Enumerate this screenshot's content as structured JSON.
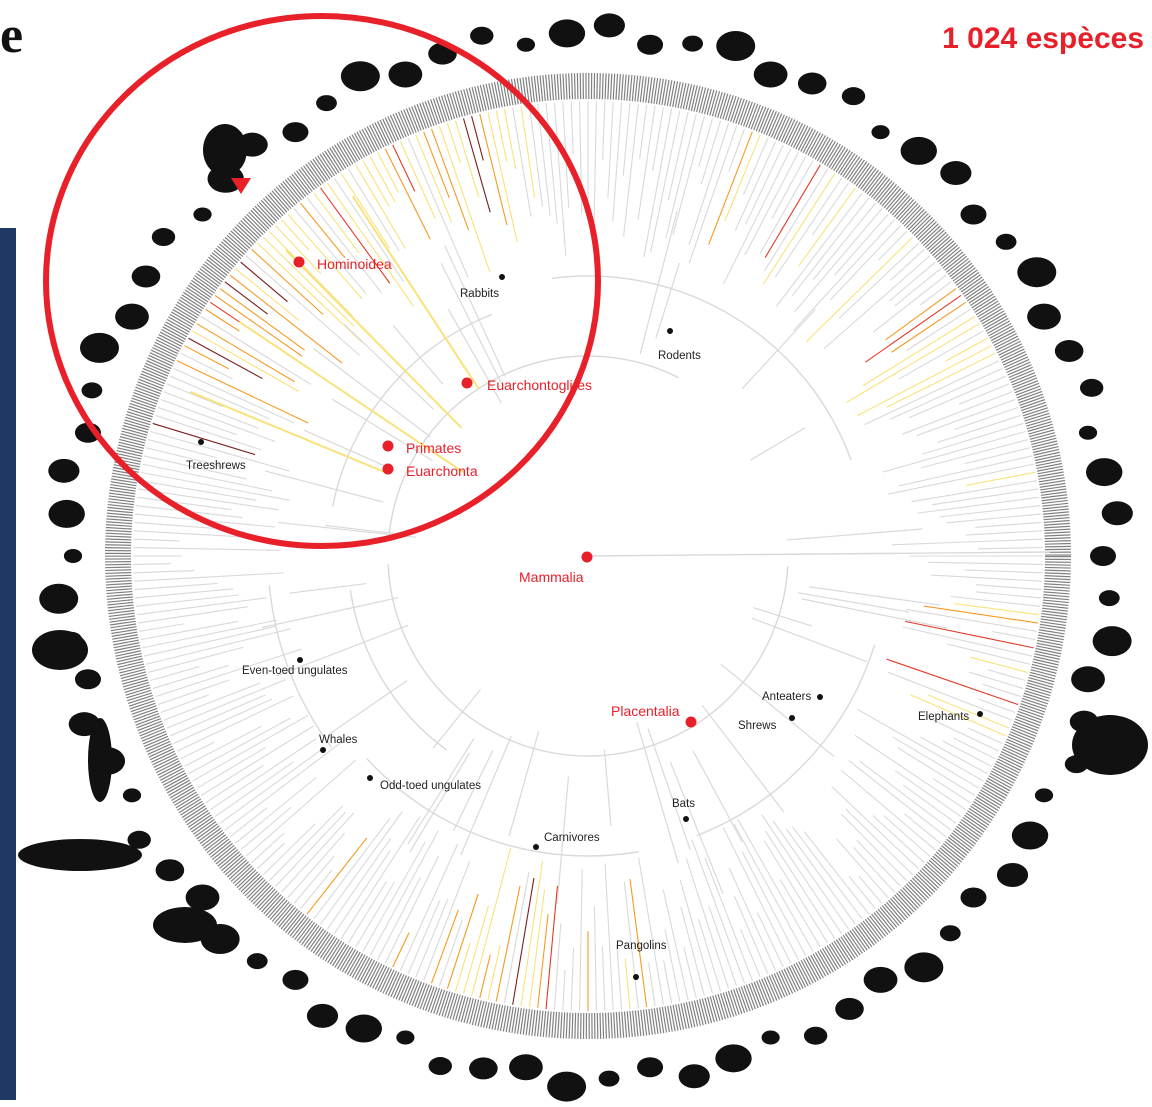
{
  "header": {
    "title_fragment": "e",
    "species_count": "1 024 espèces"
  },
  "colors": {
    "accent_red": "#e8202a",
    "panel_navy": "#1f3864",
    "branch_gray": "#d9d9d9",
    "heat_yellow": "#f8e27a",
    "heat_orange": "#f49a22",
    "heat_red": "#e23a26",
    "heat_dark": "#7a1d1d"
  },
  "highlight": {
    "shape": "circle-outline",
    "color": "#e8202a"
  },
  "key_nodes": [
    {
      "id": "hominoidea",
      "label": "Hominoidea"
    },
    {
      "id": "euarchontoglires",
      "label": "Euarchontoglires"
    },
    {
      "id": "primates",
      "label": "Primates"
    },
    {
      "id": "euarchonta",
      "label": "Euarchonta"
    },
    {
      "id": "mammalia",
      "label": "Mammalia"
    },
    {
      "id": "placentalia",
      "label": "Placentalia"
    }
  ],
  "group_labels": [
    {
      "id": "rabbits",
      "label": "Rabbits"
    },
    {
      "id": "rodents",
      "label": "Rodents"
    },
    {
      "id": "treeshrews",
      "label": "Treeshrews"
    },
    {
      "id": "even-toed",
      "label": "Even-toed ungulates"
    },
    {
      "id": "whales",
      "label": "Whales"
    },
    {
      "id": "odd-toed",
      "label": "Odd-toed ungulates"
    },
    {
      "id": "anteaters",
      "label": "Anteaters"
    },
    {
      "id": "shrews",
      "label": "Shrews"
    },
    {
      "id": "elephants",
      "label": "Elephants"
    },
    {
      "id": "bats",
      "label": "Bats"
    },
    {
      "id": "carnivores",
      "label": "Carnivores"
    },
    {
      "id": "pangolins",
      "label": "Pangolins"
    }
  ],
  "silhouettes": {
    "icon": "animal-silhouette-icon",
    "large": [
      "elephant",
      "whale",
      "giraffe",
      "bison",
      "rhinoceros",
      "gorilla"
    ]
  }
}
